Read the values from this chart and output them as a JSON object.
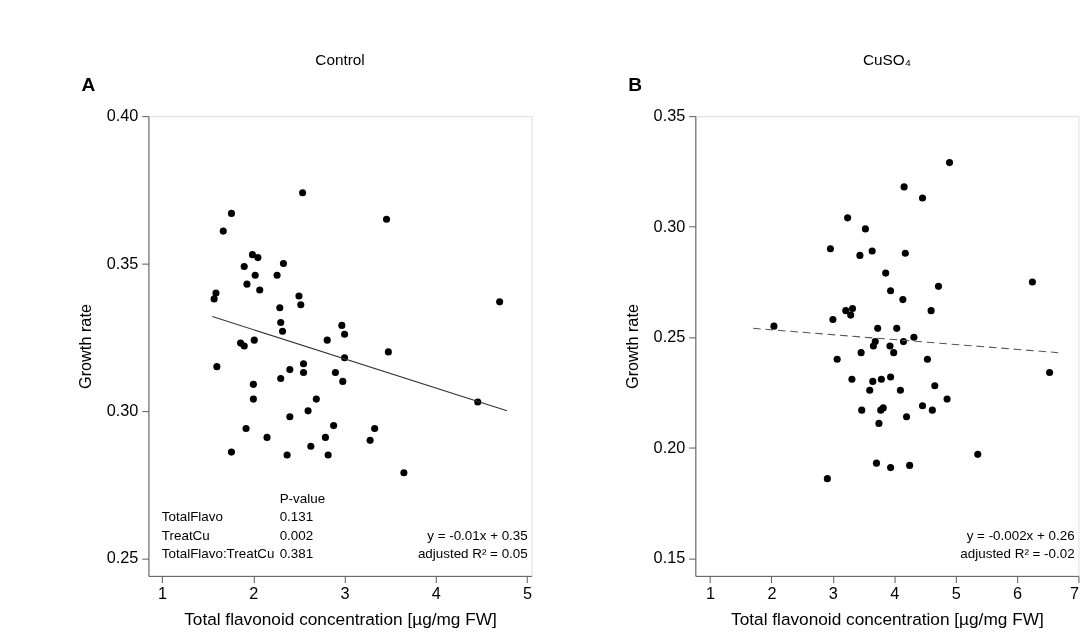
{
  "chart_data": [
    {
      "type": "scatter",
      "title": "Control",
      "xlabel": "Total flavonoid concentration [µg/mg FW]",
      "ylabel": "Growth rate",
      "xlim": [
        0.85,
        5.05
      ],
      "ylim": [
        0.244,
        0.4
      ],
      "xticks": [
        1,
        2,
        3,
        4,
        5
      ],
      "yticks": [
        {
          "value": 0.25,
          "label": "0.25"
        },
        {
          "value": 0.3,
          "label": "0.30"
        },
        {
          "value": 0.35,
          "label": "0.35"
        },
        {
          "value": 0.4,
          "label": "0.40"
        }
      ],
      "grid": false,
      "annotations": [
        "A",
        "P-value",
        "TotalFlavo",
        "0.131",
        "TreatCu",
        "0.002",
        "TotalFlavo:TreatCu",
        "0.381",
        "y = -0.01x + 0.35",
        "adjusted R² = 0.05"
      ],
      "series": [
        {
          "type": "scatter",
          "marker": "circle",
          "color": "#000000",
          "x": [
            1.57,
            1.59,
            1.6,
            1.67,
            1.76,
            1.76,
            1.86,
            1.9,
            1.9,
            1.92,
            1.93,
            1.99,
            2.0,
            2.0,
            2.01,
            2.02,
            2.05,
            2.07,
            2.15,
            2.26,
            2.29,
            2.3,
            2.3,
            2.32,
            2.33,
            2.37,
            2.4,
            2.4,
            2.5,
            2.52,
            2.54,
            2.55,
            2.55,
            2.6,
            2.63,
            2.69,
            2.79,
            2.81,
            2.82,
            2.88,
            2.9,
            2.97,
            2.98,
            3.0,
            3.0,
            3.28,
            3.33,
            3.46,
            3.48,
            3.65,
            4.46,
            4.7
          ],
          "values": [
            0.338,
            0.34,
            0.315,
            0.361,
            0.367,
            0.286,
            0.323,
            0.322,
            0.349,
            0.294,
            0.343,
            0.353,
            0.309,
            0.304,
            0.324,
            0.346,
            0.352,
            0.341,
            0.291,
            0.346,
            0.335,
            0.311,
            0.33,
            0.327,
            0.35,
            0.285,
            0.298,
            0.314,
            0.339,
            0.336,
            0.374,
            0.313,
            0.316,
            0.3,
            0.288,
            0.304,
            0.291,
            0.324,
            0.285,
            0.295,
            0.313,
            0.329,
            0.31,
            0.318,
            0.326,
            0.29,
            0.294,
            0.365,
            0.32,
            0.279,
            0.303,
            0.337
          ]
        },
        {
          "type": "line",
          "marker": "none",
          "color": "#333333",
          "line_style": "solid",
          "x": [
            1.55,
            4.78
          ],
          "values": [
            0.332,
            0.3
          ]
        }
      ]
    },
    {
      "type": "scatter",
      "title": "CuSO₄",
      "xlabel": "Total flavonoid concentration [µg/mg FW]",
      "ylabel": "Growth rate",
      "xlim": [
        0.76,
        7
      ],
      "ylim": [
        0.142,
        0.35
      ],
      "xticks": [
        1,
        2,
        3,
        4,
        5,
        6,
        7
      ],
      "yticks": [
        {
          "value": 0.15,
          "label": "0.15"
        },
        {
          "value": 0.2,
          "label": "0.20"
        },
        {
          "value": 0.25,
          "label": "0.25"
        },
        {
          "value": 0.3,
          "label": "0.30"
        },
        {
          "value": 0.35,
          "label": "0.35"
        }
      ],
      "grid": false,
      "annotations": [
        "B",
        "y = -0.002x + 0.26",
        "adjusted R² = -0.02"
      ],
      "series": [
        {
          "type": "scatter",
          "marker": "circle",
          "color": "#000000",
          "x": [
            2.04,
            2.91,
            2.96,
            3.0,
            3.07,
            3.21,
            3.24,
            3.29,
            3.32,
            3.31,
            3.44,
            3.46,
            3.47,
            3.53,
            3.6,
            3.64,
            3.65,
            3.66,
            3.69,
            3.71,
            3.73,
            3.75,
            3.78,
            3.79,
            3.82,
            3.86,
            3.93,
            3.94,
            3.94,
            3.94,
            3.99,
            4.04,
            4.1,
            4.14,
            4.15,
            4.16,
            4.18,
            4.2,
            4.25,
            4.32,
            4.46,
            4.46,
            4.54,
            4.6,
            4.62,
            4.66,
            4.72,
            4.86,
            4.9,
            5.36,
            6.25,
            6.53
          ],
          "values": [
            0.255,
            0.186,
            0.29,
            0.258,
            0.24,
            0.262,
            0.304,
            0.26,
            0.263,
            0.231,
            0.287,
            0.243,
            0.217,
            0.299,
            0.226,
            0.289,
            0.23,
            0.246,
            0.248,
            0.193,
            0.254,
            0.211,
            0.217,
            0.231,
            0.218,
            0.279,
            0.246,
            0.271,
            0.191,
            0.232,
            0.243,
            0.254,
            0.226,
            0.267,
            0.248,
            0.318,
            0.288,
            0.214,
            0.192,
            0.25,
            0.219,
            0.313,
            0.24,
            0.262,
            0.217,
            0.228,
            0.273,
            0.222,
            0.329,
            0.197,
            0.275,
            0.234
          ]
        },
        {
          "type": "line",
          "marker": "none",
          "color": "#555555",
          "line_style": "dashed",
          "x": [
            1.7,
            6.67
          ],
          "values": [
            0.254,
            0.243
          ]
        }
      ]
    }
  ]
}
